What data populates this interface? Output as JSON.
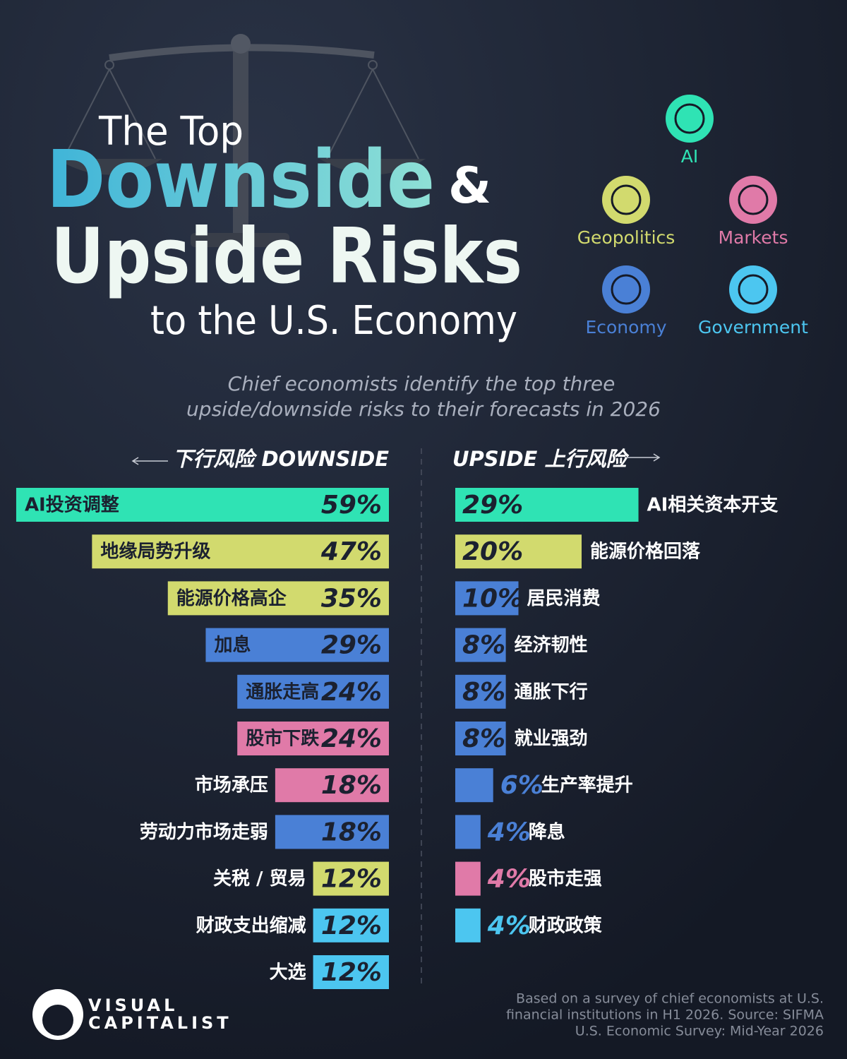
{
  "header": {
    "kicker": "The Top",
    "title_1": "Downside",
    "amp": "&",
    "title_2": "Upside Risks",
    "title_3": "to the U.S. Economy"
  },
  "subtitle": [
    "Chief economists identify the top three",
    "upside/downside risks to their forecasts in 2026"
  ],
  "legend": [
    {
      "name": "AI",
      "color": "#2fe3b4"
    },
    {
      "name": "Geopolitics",
      "color": "#d2da6e"
    },
    {
      "name": "Markets",
      "color": "#e07aa8"
    },
    {
      "name": "Economy",
      "color": "#4a80d6"
    },
    {
      "name": "Government",
      "color": "#4cc6f0"
    }
  ],
  "chart_data": [
    {
      "type": "bar",
      "title": "下行风险 DOWNSIDE",
      "categories": [
        "AI投资调整",
        "地缘局势升级",
        "能源价格高企",
        "加息",
        "通胀走高",
        "股市下跌",
        "市场承压",
        "劳动力市场走弱",
        "关税 / 贸易",
        "财政支出缩减",
        "大选"
      ],
      "values": [
        59,
        47,
        35,
        29,
        24,
        24,
        18,
        18,
        12,
        12,
        12
      ],
      "value_labels": [
        "59%",
        "47%",
        "35%",
        "29%",
        "24%",
        "24%",
        "18%",
        "18%",
        "12%",
        "12%",
        "12%"
      ],
      "colors": [
        "#2fe3b4",
        "#d2da6e",
        "#d2da6e",
        "#4a80d6",
        "#4a80d6",
        "#e07aa8",
        "#e07aa8",
        "#4a80d6",
        "#d2da6e",
        "#4cc6f0",
        "#4cc6f0"
      ]
    },
    {
      "type": "bar",
      "title": "UPSIDE 上行风险",
      "categories": [
        "AI相关资本开支",
        "能源价格回落",
        "居民消费",
        "经济韧性",
        "通胀下行",
        "就业强劲",
        "生产率提升",
        "降息",
        "股市走强",
        "财政政策"
      ],
      "values": [
        29,
        20,
        10,
        8,
        8,
        8,
        6,
        4,
        4,
        4
      ],
      "value_labels": [
        "29%",
        "20%",
        "10%",
        "8%",
        "8%",
        "8%",
        "6%",
        "4%",
        "4%",
        "4%"
      ],
      "colors": [
        "#2fe3b4",
        "#d2da6e",
        "#4a80d6",
        "#4a80d6",
        "#4a80d6",
        "#4a80d6",
        "#4a80d6",
        "#4a80d6",
        "#e07aa8",
        "#4cc6f0"
      ]
    }
  ],
  "source": [
    "Based on a survey of chief economists at U.S.",
    "financial institutions in H1 2026. Source: SIFMA",
    "U.S. Economic Survey: Mid-Year 2026"
  ],
  "brand": [
    "VISUAL",
    "CAPITALIST"
  ]
}
